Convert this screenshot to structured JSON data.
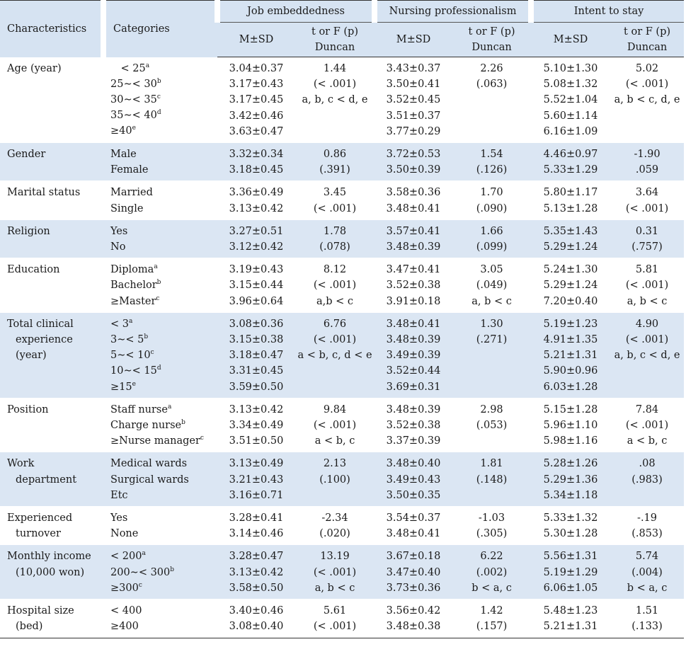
{
  "header": {
    "characteristics": "Characteristics",
    "categories": "Categories",
    "groups": [
      "Job embeddedness",
      "Nursing professionalism",
      "Intent to stay"
    ],
    "msd": "M±SD",
    "stat_line1": "t or F (p)",
    "stat_line2": "Duncan"
  },
  "rows": [
    {
      "char": [
        "Age (year)"
      ],
      "cats": [
        {
          "text": "　< 25",
          "sup": "a"
        },
        {
          "text": "25∼< 30",
          "sup": "b"
        },
        {
          "text": "30∼< 35",
          "sup": "c"
        },
        {
          "text": "35∼< 40",
          "sup": "d"
        },
        {
          "text": "≥40",
          "sup": "e"
        }
      ],
      "je": [
        "3.04±0.37",
        "3.17±0.43",
        "3.17±0.45",
        "3.42±0.46",
        "3.63±0.47"
      ],
      "je_t": [
        "1.44",
        "(< .001)",
        "a, b, c < d, e"
      ],
      "np": [
        "3.43±0.37",
        "3.50±0.41",
        "3.52±0.45",
        "3.51±0.37",
        "3.77±0.29"
      ],
      "np_t": [
        "2.26",
        "(.063)"
      ],
      "is": [
        "5.10±1.30",
        "5.08±1.32",
        "5.52±1.04",
        "5.60±1.14",
        "6.16±1.09"
      ],
      "is_t": [
        "5.02",
        "(< .001)",
        "a, b < c, d, e"
      ]
    },
    {
      "char": [
        "Gender"
      ],
      "cats": [
        {
          "text": "Male",
          "sup": ""
        },
        {
          "text": "Female",
          "sup": ""
        }
      ],
      "je": [
        "3.32±0.34",
        "3.18±0.45"
      ],
      "je_t": [
        "0.86",
        "(.391)"
      ],
      "np": [
        "3.72±0.53",
        "3.50±0.39"
      ],
      "np_t": [
        "1.54",
        "(.126)"
      ],
      "is": [
        "4.46±0.97",
        "5.33±1.29"
      ],
      "is_t": [
        "-1.90",
        ".059"
      ]
    },
    {
      "char": [
        "Marital status"
      ],
      "cats": [
        {
          "text": "Married",
          "sup": ""
        },
        {
          "text": "Single",
          "sup": ""
        }
      ],
      "je": [
        "3.36±0.49",
        "3.13±0.42"
      ],
      "je_t": [
        "3.45",
        "(< .001)"
      ],
      "np": [
        "3.58±0.36",
        "3.48±0.41"
      ],
      "np_t": [
        "1.70",
        "(.090)"
      ],
      "is": [
        "5.80±1.17",
        "5.13±1.28"
      ],
      "is_t": [
        "3.64",
        "(< .001)"
      ]
    },
    {
      "char": [
        "Religion"
      ],
      "cats": [
        {
          "text": "Yes",
          "sup": ""
        },
        {
          "text": "No",
          "sup": ""
        }
      ],
      "je": [
        "3.27±0.51",
        "3.12±0.42"
      ],
      "je_t": [
        "1.78",
        "(.078)"
      ],
      "np": [
        "3.57±0.41",
        "3.48±0.39"
      ],
      "np_t": [
        "1.66",
        "(.099)"
      ],
      "is": [
        "5.35±1.43",
        "5.29±1.24"
      ],
      "is_t": [
        "0.31",
        "(.757)"
      ]
    },
    {
      "char": [
        "Education"
      ],
      "cats": [
        {
          "text": "Diploma",
          "sup": "a"
        },
        {
          "text": "Bachelor",
          "sup": "b"
        },
        {
          "text": "≥Master",
          "sup": "c"
        }
      ],
      "je": [
        "3.19±0.43",
        "3.15±0.44",
        "3.96±0.64"
      ],
      "je_t": [
        "8.12",
        "(< .001)",
        "a,b < c"
      ],
      "np": [
        "3.47±0.41",
        "3.52±0.38",
        "3.91±0.18"
      ],
      "np_t": [
        "3.05",
        "(.049)",
        "a, b < c"
      ],
      "is": [
        "5.24±1.30",
        "5.29±1.24",
        "7.20±0.40"
      ],
      "is_t": [
        "5.81",
        "(< .001)",
        "a, b < c"
      ]
    },
    {
      "char": [
        "Total clinical",
        "experience",
        "(year)"
      ],
      "cats": [
        {
          "text": "< 3",
          "sup": "a"
        },
        {
          "text": "3∼< 5",
          "sup": "b"
        },
        {
          "text": "5∼< 10",
          "sup": "c"
        },
        {
          "text": "10∼< 15",
          "sup": "d"
        },
        {
          "text": "≥15",
          "sup": "e"
        }
      ],
      "je": [
        "3.08±0.36",
        "3.15±0.38",
        "3.18±0.47",
        "3.31±0.45",
        "3.59±0.50"
      ],
      "je_t": [
        "6.76",
        "(< .001)",
        "a < b, c, d < e"
      ],
      "np": [
        "3.48±0.41",
        "3.48±0.39",
        "3.49±0.39",
        "3.52±0.44",
        "3.69±0.31"
      ],
      "np_t": [
        "1.30",
        "(.271)"
      ],
      "is": [
        "5.19±1.23",
        "4.91±1.35",
        "5.21±1.31",
        "5.90±0.96",
        "6.03±1.28"
      ],
      "is_t": [
        "4.90",
        "(< .001)",
        "a, b, c < d, e"
      ]
    },
    {
      "char": [
        "Position"
      ],
      "cats": [
        {
          "text": "Staff nurse",
          "sup": "a"
        },
        {
          "text": "Charge nurse",
          "sup": "b"
        },
        {
          "text": "≥Nurse manager",
          "sup": "c"
        }
      ],
      "je": [
        "3.13±0.42",
        "3.34±0.49",
        "3.51±0.50"
      ],
      "je_t": [
        "9.84",
        "(< .001)",
        "a < b, c"
      ],
      "np": [
        "3.48±0.39",
        "3.52±0.38",
        "3.37±0.39"
      ],
      "np_t": [
        "2.98",
        "(.053)"
      ],
      "is": [
        "5.15±1.28",
        "5.96±1.10",
        "5.98±1.16"
      ],
      "is_t": [
        "7.84",
        "(< .001)",
        "a < b, c"
      ]
    },
    {
      "char": [
        "Work",
        "department"
      ],
      "cats": [
        {
          "text": "Medical wards",
          "sup": ""
        },
        {
          "text": "Surgical wards",
          "sup": ""
        },
        {
          "text": "Etc",
          "sup": ""
        }
      ],
      "je": [
        "3.13±0.49",
        "3.21±0.43",
        "3.16±0.71"
      ],
      "je_t": [
        "2.13",
        "(.100)"
      ],
      "np": [
        "3.48±0.40",
        "3.49±0.43",
        "3.50±0.35"
      ],
      "np_t": [
        "1.81",
        "(.148)"
      ],
      "is": [
        "5.28±1.26",
        "5.29±1.36",
        "5.34±1.18"
      ],
      "is_t": [
        ".08",
        "(.983)"
      ]
    },
    {
      "char": [
        "Experienced",
        "turnover"
      ],
      "cats": [
        {
          "text": "Yes",
          "sup": ""
        },
        {
          "text": "None",
          "sup": ""
        }
      ],
      "je": [
        "3.28±0.41",
        "3.14±0.46"
      ],
      "je_t": [
        "-2.34",
        "(.020)"
      ],
      "np": [
        "3.54±0.37",
        "3.48±0.41"
      ],
      "np_t": [
        "-1.03",
        "(.305)"
      ],
      "is": [
        "5.33±1.32",
        "5.30±1.28"
      ],
      "is_t": [
        "-.19",
        "(.853)"
      ]
    },
    {
      "char": [
        "Monthly income",
        "(10,000 won)"
      ],
      "cats": [
        {
          "text": "< 200",
          "sup": "a"
        },
        {
          "text": "200∼< 300",
          "sup": "b"
        },
        {
          "text": "≥300",
          "sup": "c"
        }
      ],
      "je": [
        "3.28±0.47",
        "3.13±0.42",
        "3.58±0.50"
      ],
      "je_t": [
        "13.19",
        "(< .001)",
        "a, b < c"
      ],
      "np": [
        "3.67±0.18",
        "3.47±0.40",
        "3.73±0.36"
      ],
      "np_t": [
        "6.22",
        "(.002)",
        "b < a, c"
      ],
      "is": [
        "5.56±1.31",
        "5.19±1.29",
        "6.06±1.05"
      ],
      "is_t": [
        "5.74",
        "(.004)",
        "b < a, c"
      ]
    },
    {
      "char": [
        "Hospital size",
        "(bed)"
      ],
      "cats": [
        {
          "text": "< 400",
          "sup": ""
        },
        {
          "text": "≥400",
          "sup": ""
        }
      ],
      "je": [
        "3.40±0.46",
        "3.08±0.40"
      ],
      "je_t": [
        "5.61",
        "(< .001)"
      ],
      "np": [
        "3.56±0.42",
        "3.48±0.38"
      ],
      "np_t": [
        "1.42",
        "(.157)"
      ],
      "is": [
        "5.48±1.23",
        "5.21±1.31"
      ],
      "is_t": [
        "1.51",
        "(.133)"
      ]
    }
  ]
}
